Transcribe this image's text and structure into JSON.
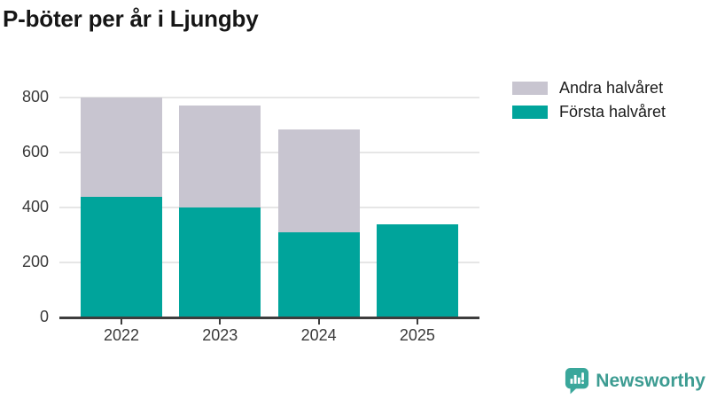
{
  "title": "P-böter per år i Ljungby",
  "colors": {
    "first_half": "#00a49b",
    "second_half": "#c8c5d0",
    "axis": "#3d3d3d",
    "grid": "#e6e6e6",
    "axis_text": "#3a3a3a",
    "title_text": "#161616",
    "logo": "#3d9c92"
  },
  "chart_data": {
    "type": "bar",
    "stacked": true,
    "title": "P-böter per år i Ljungby",
    "categories": [
      "2022",
      "2023",
      "2024",
      "2025"
    ],
    "series": [
      {
        "name": "Första halvåret",
        "color_key": "first_half",
        "values": [
          440,
          400,
          310,
          340
        ]
      },
      {
        "name": "Andra halvåret",
        "color_key": "second_half",
        "values": [
          360,
          370,
          375,
          0
        ]
      }
    ],
    "totals": [
      800,
      770,
      685,
      340
    ],
    "xlabel": "",
    "ylabel": "",
    "ylim": [
      0,
      800
    ],
    "yticks": [
      0,
      200,
      400,
      600,
      800
    ],
    "grid": true,
    "legend_position": "top-right"
  },
  "legend": {
    "items": [
      {
        "label": "Andra halvåret",
        "color_key": "second_half"
      },
      {
        "label": "Första halvåret",
        "color_key": "first_half"
      }
    ]
  },
  "branding": {
    "logo_text": "Newsworthy"
  }
}
